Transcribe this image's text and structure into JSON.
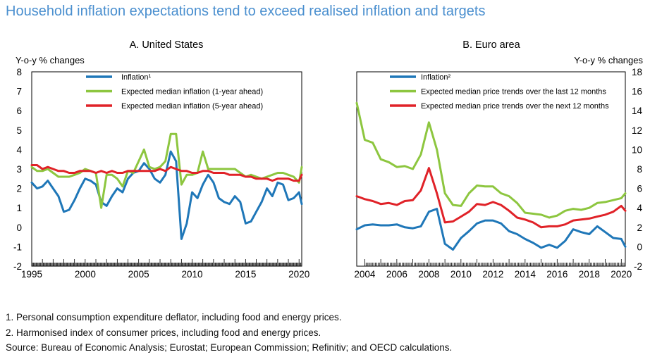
{
  "title": "Household inflation expectations tend to exceed realised inflation and targets",
  "notes": [
    "1. Personal consumption expenditure deflator, including food and energy prices.",
    "2. Harmonised index of consumer prices, including food and energy prices.",
    "Source: Bureau of Economic Analysis; Eurostat; European Commission; Refinitiv; and OECD calculations."
  ],
  "colors": {
    "blue": "#1f77b8",
    "green": "#8dc63f",
    "red": "#e02228",
    "title": "#4a8fcf"
  },
  "chart_data": [
    {
      "type": "line",
      "title": "A. United States",
      "ylabel": "Y-o-y % changes",
      "ylim": [
        -2,
        8
      ],
      "yticks": [
        "-2",
        "-1",
        "0",
        "1",
        "2",
        "3",
        "4",
        "5",
        "6",
        "7",
        "8"
      ],
      "xlim": [
        1995,
        2020.25
      ],
      "xticks": [
        "1995",
        "2000",
        "2005",
        "2010",
        "2015",
        "2020"
      ],
      "legend": "top-left",
      "series": [
        {
          "name": "Inflation¹",
          "color": "#1f77b8",
          "x": [
            1995,
            1995.5,
            1996,
            1996.5,
            1997,
            1997.5,
            1998,
            1998.5,
            1999,
            1999.5,
            2000,
            2000.5,
            2001,
            2001.5,
            2002,
            2002.5,
            2003,
            2003.5,
            2004,
            2004.5,
            2005,
            2005.5,
            2006,
            2006.5,
            2007,
            2007.5,
            2008,
            2008.5,
            2009,
            2009.5,
            2010,
            2010.5,
            2011,
            2011.5,
            2012,
            2012.5,
            2013,
            2013.5,
            2014,
            2014.5,
            2015,
            2015.5,
            2016,
            2016.5,
            2017,
            2017.5,
            2018,
            2018.5,
            2019,
            2019.5,
            2020,
            2020.25
          ],
          "y": [
            2.3,
            2.0,
            2.1,
            2.4,
            2.0,
            1.6,
            0.8,
            0.9,
            1.4,
            2.0,
            2.5,
            2.4,
            2.2,
            1.3,
            1.1,
            1.6,
            2.0,
            1.8,
            2.5,
            2.8,
            2.9,
            3.3,
            3.0,
            2.5,
            2.3,
            2.7,
            3.9,
            3.4,
            -0.6,
            0.2,
            1.8,
            1.5,
            2.2,
            2.7,
            2.3,
            1.5,
            1.3,
            1.2,
            1.6,
            1.3,
            0.2,
            0.3,
            0.8,
            1.3,
            2.0,
            1.6,
            2.3,
            2.2,
            1.4,
            1.5,
            1.8,
            1.2
          ]
        },
        {
          "name": "Expected median inflation (1-year ahead)",
          "color": "#8dc63f",
          "x": [
            1995,
            1995.5,
            1996,
            1996.5,
            1997,
            1997.5,
            1998,
            1998.5,
            1999,
            1999.5,
            2000,
            2000.5,
            2001,
            2001.5,
            2002,
            2002.5,
            2003,
            2003.5,
            2004,
            2004.5,
            2005,
            2005.5,
            2006,
            2006.5,
            2007,
            2007.5,
            2008,
            2008.5,
            2009,
            2009.5,
            2010,
            2010.5,
            2011,
            2011.5,
            2012,
            2012.5,
            2013,
            2013.5,
            2014,
            2014.5,
            2015,
            2015.5,
            2016,
            2016.5,
            2017,
            2017.5,
            2018,
            2018.5,
            2019,
            2019.5,
            2020,
            2020.25
          ],
          "y": [
            3.1,
            2.9,
            2.9,
            3.0,
            2.8,
            2.6,
            2.6,
            2.6,
            2.7,
            2.8,
            3.0,
            2.9,
            2.8,
            1.0,
            2.7,
            2.7,
            2.5,
            2.1,
            2.9,
            2.8,
            3.4,
            4.0,
            3.1,
            3.0,
            3.1,
            3.4,
            4.8,
            4.8,
            2.2,
            2.7,
            2.7,
            2.8,
            3.9,
            3.0,
            3.0,
            3.0,
            3.0,
            3.0,
            3.0,
            2.8,
            2.6,
            2.7,
            2.6,
            2.5,
            2.6,
            2.7,
            2.8,
            2.8,
            2.7,
            2.6,
            2.3,
            3.1
          ]
        },
        {
          "name": "Expected median inflation (5-year ahead)",
          "color": "#e02228",
          "x": [
            1995,
            1995.5,
            1996,
            1996.5,
            1997,
            1997.5,
            1998,
            1998.5,
            1999,
            1999.5,
            2000,
            2000.5,
            2001,
            2001.5,
            2002,
            2002.5,
            2003,
            2003.5,
            2004,
            2004.5,
            2005,
            2005.5,
            2006,
            2006.5,
            2007,
            2007.5,
            2008,
            2008.5,
            2009,
            2009.5,
            2010,
            2010.5,
            2011,
            2011.5,
            2012,
            2012.5,
            2013,
            2013.5,
            2014,
            2014.5,
            2015,
            2015.5,
            2016,
            2016.5,
            2017,
            2017.5,
            2018,
            2018.5,
            2019,
            2019.5,
            2020,
            2020.25
          ],
          "y": [
            3.2,
            3.2,
            3.0,
            3.1,
            3.0,
            2.9,
            2.9,
            2.8,
            2.8,
            2.9,
            2.9,
            2.9,
            2.8,
            2.9,
            2.8,
            2.9,
            2.8,
            2.8,
            2.9,
            2.9,
            2.9,
            2.9,
            2.9,
            2.9,
            3.0,
            2.9,
            3.1,
            3.0,
            2.9,
            2.9,
            2.8,
            2.8,
            2.9,
            2.9,
            2.8,
            2.8,
            2.8,
            2.7,
            2.7,
            2.7,
            2.6,
            2.6,
            2.5,
            2.5,
            2.5,
            2.4,
            2.5,
            2.5,
            2.5,
            2.4,
            2.4,
            2.7
          ]
        }
      ]
    },
    {
      "type": "line",
      "title": "B. Euro area",
      "ylabel": "Y-o-y % changes",
      "ylim": [
        -2,
        18
      ],
      "yticks": [
        "-2",
        "0",
        "2",
        "4",
        "6",
        "8",
        "10",
        "12",
        "14",
        "16",
        "18"
      ],
      "xlim": [
        2003.5,
        2020.25
      ],
      "xticks": [
        "2004",
        "2006",
        "2008",
        "2010",
        "2012",
        "2014",
        "2016",
        "2018",
        "2020"
      ],
      "legend": "top-left",
      "series": [
        {
          "name": "Inflation²",
          "color": "#1f77b8",
          "x": [
            2003.5,
            2004,
            2004.5,
            2005,
            2005.5,
            2006,
            2006.5,
            2007,
            2007.5,
            2008,
            2008.5,
            2009,
            2009.5,
            2010,
            2010.5,
            2011,
            2011.5,
            2012,
            2012.5,
            2013,
            2013.5,
            2014,
            2014.5,
            2015,
            2015.5,
            2016,
            2016.5,
            2017,
            2017.5,
            2018,
            2018.5,
            2019,
            2019.5,
            2020,
            2020.25
          ],
          "y": [
            1.8,
            2.2,
            2.3,
            2.2,
            2.2,
            2.3,
            2.0,
            1.9,
            2.1,
            3.6,
            3.9,
            0.3,
            -0.3,
            0.9,
            1.6,
            2.4,
            2.7,
            2.7,
            2.4,
            1.6,
            1.3,
            0.8,
            0.4,
            -0.1,
            0.2,
            -0.1,
            0.6,
            1.8,
            1.5,
            1.3,
            2.1,
            1.5,
            0.9,
            0.8,
            0.0
          ]
        },
        {
          "name": "Expected median price trends over the last 12 months",
          "color": "#8dc63f",
          "x": [
            2003.5,
            2004,
            2004.5,
            2005,
            2005.5,
            2006,
            2006.5,
            2007,
            2007.5,
            2008,
            2008.5,
            2009,
            2009.5,
            2010,
            2010.5,
            2011,
            2011.5,
            2012,
            2012.5,
            2013,
            2013.5,
            2014,
            2014.5,
            2015,
            2015.5,
            2016,
            2016.5,
            2017,
            2017.5,
            2018,
            2018.5,
            2019,
            2019.5,
            2020,
            2020.25
          ],
          "y": [
            14.8,
            11.0,
            10.7,
            9.0,
            8.7,
            8.2,
            8.3,
            8.0,
            9.5,
            12.8,
            10.0,
            5.5,
            4.3,
            4.2,
            5.5,
            6.3,
            6.2,
            6.2,
            5.5,
            5.2,
            4.5,
            3.5,
            3.4,
            3.3,
            3.0,
            3.2,
            3.7,
            3.9,
            3.8,
            4.0,
            4.5,
            4.6,
            4.8,
            5.0,
            5.5
          ]
        },
        {
          "name": "Expected median price trends over the next 12 months",
          "color": "#e02228",
          "x": [
            2003.5,
            2004,
            2004.5,
            2005,
            2005.5,
            2006,
            2006.5,
            2007,
            2007.5,
            2008,
            2008.5,
            2009,
            2009.5,
            2010,
            2010.5,
            2011,
            2011.5,
            2012,
            2012.5,
            2013,
            2013.5,
            2014,
            2014.5,
            2015,
            2015.5,
            2016,
            2016.5,
            2017,
            2017.5,
            2018,
            2018.5,
            2019,
            2019.5,
            2020,
            2020.25
          ],
          "y": [
            5.2,
            4.9,
            4.7,
            4.4,
            4.5,
            4.3,
            4.7,
            4.8,
            5.8,
            8.1,
            5.5,
            2.5,
            2.6,
            3.1,
            3.6,
            4.4,
            4.3,
            4.6,
            4.3,
            3.7,
            3.0,
            2.8,
            2.5,
            2.0,
            2.1,
            2.1,
            2.3,
            2.7,
            2.8,
            2.9,
            3.1,
            3.3,
            3.6,
            4.2,
            3.7
          ]
        }
      ]
    }
  ]
}
